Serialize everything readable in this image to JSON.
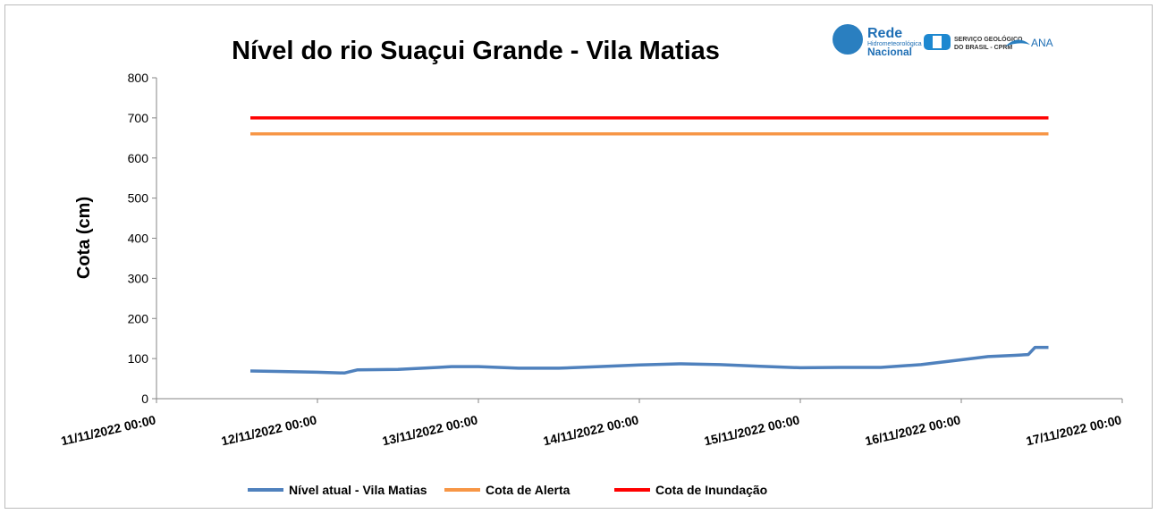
{
  "chart_data": {
    "type": "line",
    "title": "Nível do rio Suaçui Grande - Vila Matias",
    "ylabel": "Cota (cm)",
    "xlim": [
      "11/11/2022 00:00",
      "17/11/2022 00:00"
    ],
    "xticks": [
      "11/11/2022 00:00",
      "12/11/2022 00:00",
      "13/11/2022 00:00",
      "14/11/2022 00:00",
      "15/11/2022 00:00",
      "16/11/2022 00:00",
      "17/11/2022 00:00"
    ],
    "ylim": [
      0,
      800
    ],
    "yticks": [
      0,
      100,
      200,
      300,
      400,
      500,
      600,
      700,
      800
    ],
    "grid": false,
    "legend": "bottom",
    "series": [
      {
        "name": "Nível atual - Vila Matias",
        "color": "#4f81bd",
        "x": [
          "11/11/2022 14:00",
          "11/11/2022 18:00",
          "12/11/2022 00:00",
          "12/11/2022 04:00",
          "12/11/2022 06:00",
          "12/11/2022 12:00",
          "12/11/2022 18:00",
          "12/11/2022 20:00",
          "13/11/2022 00:00",
          "13/11/2022 06:00",
          "13/11/2022 12:00",
          "13/11/2022 18:00",
          "14/11/2022 00:00",
          "14/11/2022 06:00",
          "14/11/2022 12:00",
          "14/11/2022 18:00",
          "15/11/2022 00:00",
          "15/11/2022 06:00",
          "15/11/2022 12:00",
          "15/11/2022 18:00",
          "16/11/2022 00:00",
          "16/11/2022 04:00",
          "16/11/2022 08:00",
          "16/11/2022 10:00",
          "16/11/2022 11:00",
          "16/11/2022 13:00"
        ],
        "values": [
          69,
          68,
          66,
          64,
          72,
          73,
          78,
          80,
          80,
          76,
          76,
          80,
          84,
          87,
          85,
          81,
          77,
          78,
          78,
          85,
          97,
          105,
          108,
          110,
          128,
          128
        ]
      },
      {
        "name": "Cota de Alerta",
        "color": "#f79646",
        "x": [
          "11/11/2022 14:00",
          "16/11/2022 13:00"
        ],
        "values": [
          660,
          660
        ]
      },
      {
        "name": "Cota de Inundação",
        "color": "#ff0000",
        "x": [
          "11/11/2022 14:00",
          "16/11/2022 13:00"
        ],
        "values": [
          700,
          700
        ]
      }
    ]
  },
  "logos": {
    "rede": "Rede",
    "rede_sub1": "Hidrometeorológica",
    "rede_sub2": "Nacional",
    "cprm1": "SERVIÇO GEOLÓGICO",
    "cprm2": "DO BRASIL - CPRM",
    "ana": "ANA"
  }
}
